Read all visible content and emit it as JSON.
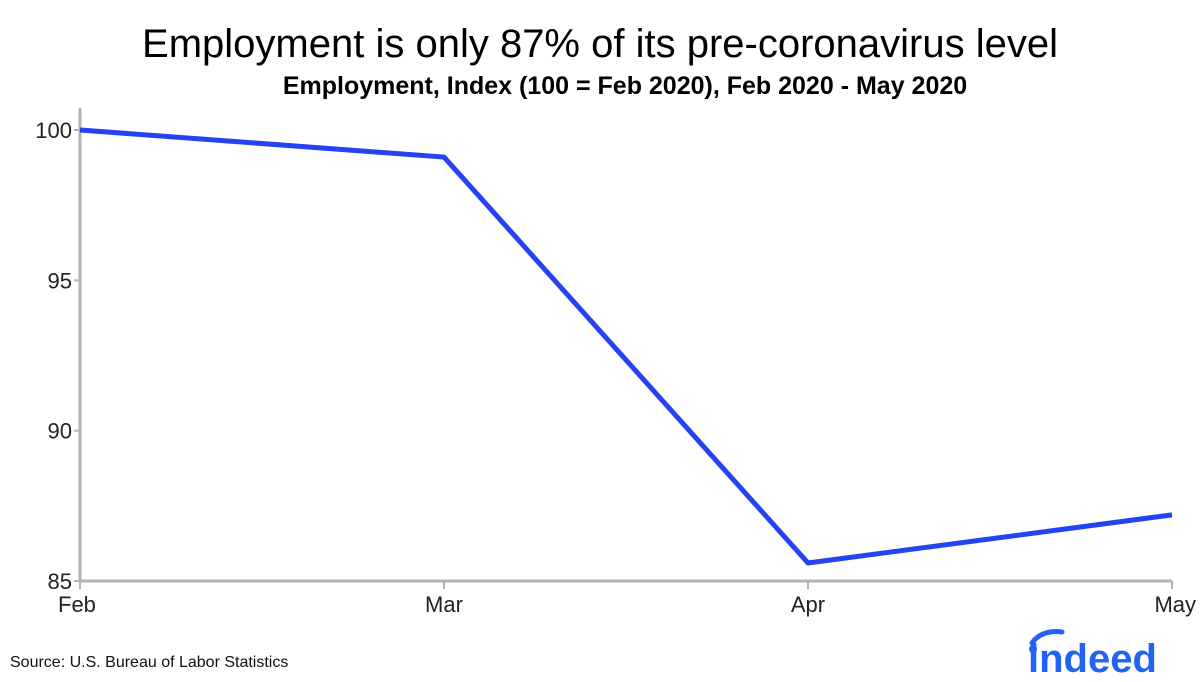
{
  "title": "Employment is only 87% of its pre-coronavirus level",
  "subtitle": "Employment, Index (100 = Feb 2020), Feb 2020 - May 2020",
  "source": "Source: U.S. Bureau of Labor Statistics",
  "logo": {
    "text": "indeed",
    "color": "#2164f3"
  },
  "colors": {
    "line": "#2543f0",
    "axis": "#b3b3b3"
  },
  "chart_data": {
    "type": "line",
    "title": "Employment is only 87% of its pre-coronavirus level",
    "subtitle": "Employment, Index (100 = Feb 2020), Feb 2020 - May 2020",
    "xlabel": "",
    "ylabel": "",
    "categories": [
      "Feb",
      "Mar",
      "Apr",
      "May"
    ],
    "series": [
      {
        "values": [
          100.0,
          99.1,
          85.6,
          87.2
        ]
      }
    ],
    "ylim": [
      85,
      100
    ],
    "yticks": [
      100,
      95,
      90,
      85
    ],
    "grid": false,
    "legend": "none"
  }
}
